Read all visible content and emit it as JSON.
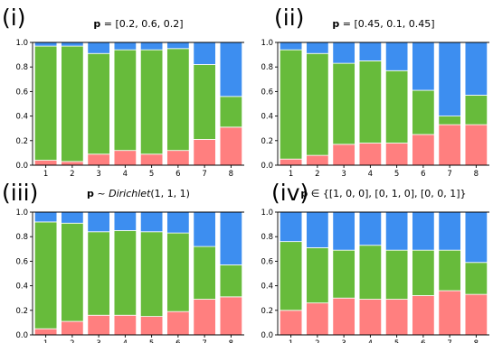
{
  "colors": {
    "series_bottom": "#ff7f7f",
    "series_middle": "#67bb3b",
    "series_top": "#3d8ef0"
  },
  "chart_data": [
    {
      "type": "bar",
      "stacked": true,
      "panel_label": "(i)",
      "title_bold": "p",
      "title_rest": " = [0.2, 0.6, 0.2]",
      "title_italic": "",
      "title_after": "",
      "categories": [
        "1",
        "2",
        "3",
        "4",
        "5",
        "6",
        "7",
        "8"
      ],
      "series": [
        {
          "values": [
            0.04,
            0.03,
            0.09,
            0.12,
            0.09,
            0.12,
            0.21,
            0.31
          ]
        },
        {
          "values": [
            0.93,
            0.94,
            0.82,
            0.82,
            0.85,
            0.83,
            0.61,
            0.25
          ]
        },
        {
          "values": [
            0.03,
            0.03,
            0.09,
            0.06,
            0.06,
            0.05,
            0.18,
            0.44
          ]
        }
      ],
      "ylim": [
        0,
        1.0
      ],
      "yticks": [
        "0.0",
        "0.2",
        "0.4",
        "0.6",
        "0.8",
        "1.0"
      ]
    },
    {
      "type": "bar",
      "stacked": true,
      "panel_label": "(ii)",
      "title_bold": "p",
      "title_rest": " = [0.45, 0.1, 0.45]",
      "title_italic": "",
      "title_after": "",
      "categories": [
        "1",
        "2",
        "3",
        "4",
        "5",
        "6",
        "7",
        "8"
      ],
      "series": [
        {
          "values": [
            0.05,
            0.08,
            0.17,
            0.18,
            0.18,
            0.25,
            0.33,
            0.33
          ]
        },
        {
          "values": [
            0.89,
            0.83,
            0.66,
            0.67,
            0.59,
            0.36,
            0.07,
            0.24
          ]
        },
        {
          "values": [
            0.06,
            0.09,
            0.17,
            0.15,
            0.23,
            0.39,
            0.6,
            0.43
          ]
        }
      ],
      "ylim": [
        0,
        1.0
      ],
      "yticks": [
        "0.0",
        "0.2",
        "0.4",
        "0.6",
        "0.8",
        "1.0"
      ]
    },
    {
      "type": "bar",
      "stacked": true,
      "panel_label": "(iii)",
      "title_bold": "p",
      "title_rest": " ~ ",
      "title_italic": "Dirichlet",
      "title_after": "(1, 1, 1)",
      "categories": [
        "1",
        "2",
        "3",
        "4",
        "5",
        "6",
        "7",
        "8"
      ],
      "series": [
        {
          "values": [
            0.05,
            0.11,
            0.16,
            0.16,
            0.15,
            0.19,
            0.29,
            0.31
          ]
        },
        {
          "values": [
            0.87,
            0.8,
            0.68,
            0.69,
            0.69,
            0.64,
            0.43,
            0.26
          ]
        },
        {
          "values": [
            0.08,
            0.09,
            0.16,
            0.15,
            0.16,
            0.17,
            0.28,
            0.43
          ]
        }
      ],
      "ylim": [
        0,
        1.0
      ],
      "yticks": [
        "0.0",
        "0.2",
        "0.4",
        "0.6",
        "0.8",
        "1.0"
      ]
    },
    {
      "type": "bar",
      "stacked": true,
      "panel_label": "(iv)",
      "title_bold": "p",
      "title_rest": " ∈ {[1, 0, 0], [0, 1, 0], [0, 0, 1]}",
      "title_italic": "",
      "title_after": "",
      "categories": [
        "1",
        "2",
        "3",
        "4",
        "5",
        "6",
        "7",
        "8"
      ],
      "series": [
        {
          "values": [
            0.2,
            0.26,
            0.3,
            0.29,
            0.29,
            0.32,
            0.36,
            0.33
          ]
        },
        {
          "values": [
            0.56,
            0.45,
            0.39,
            0.44,
            0.4,
            0.37,
            0.33,
            0.26
          ]
        },
        {
          "values": [
            0.24,
            0.29,
            0.31,
            0.27,
            0.31,
            0.31,
            0.31,
            0.41
          ]
        }
      ],
      "ylim": [
        0,
        1.0
      ],
      "yticks": [
        "0.0",
        "0.2",
        "0.4",
        "0.6",
        "0.8",
        "1.0"
      ]
    }
  ]
}
